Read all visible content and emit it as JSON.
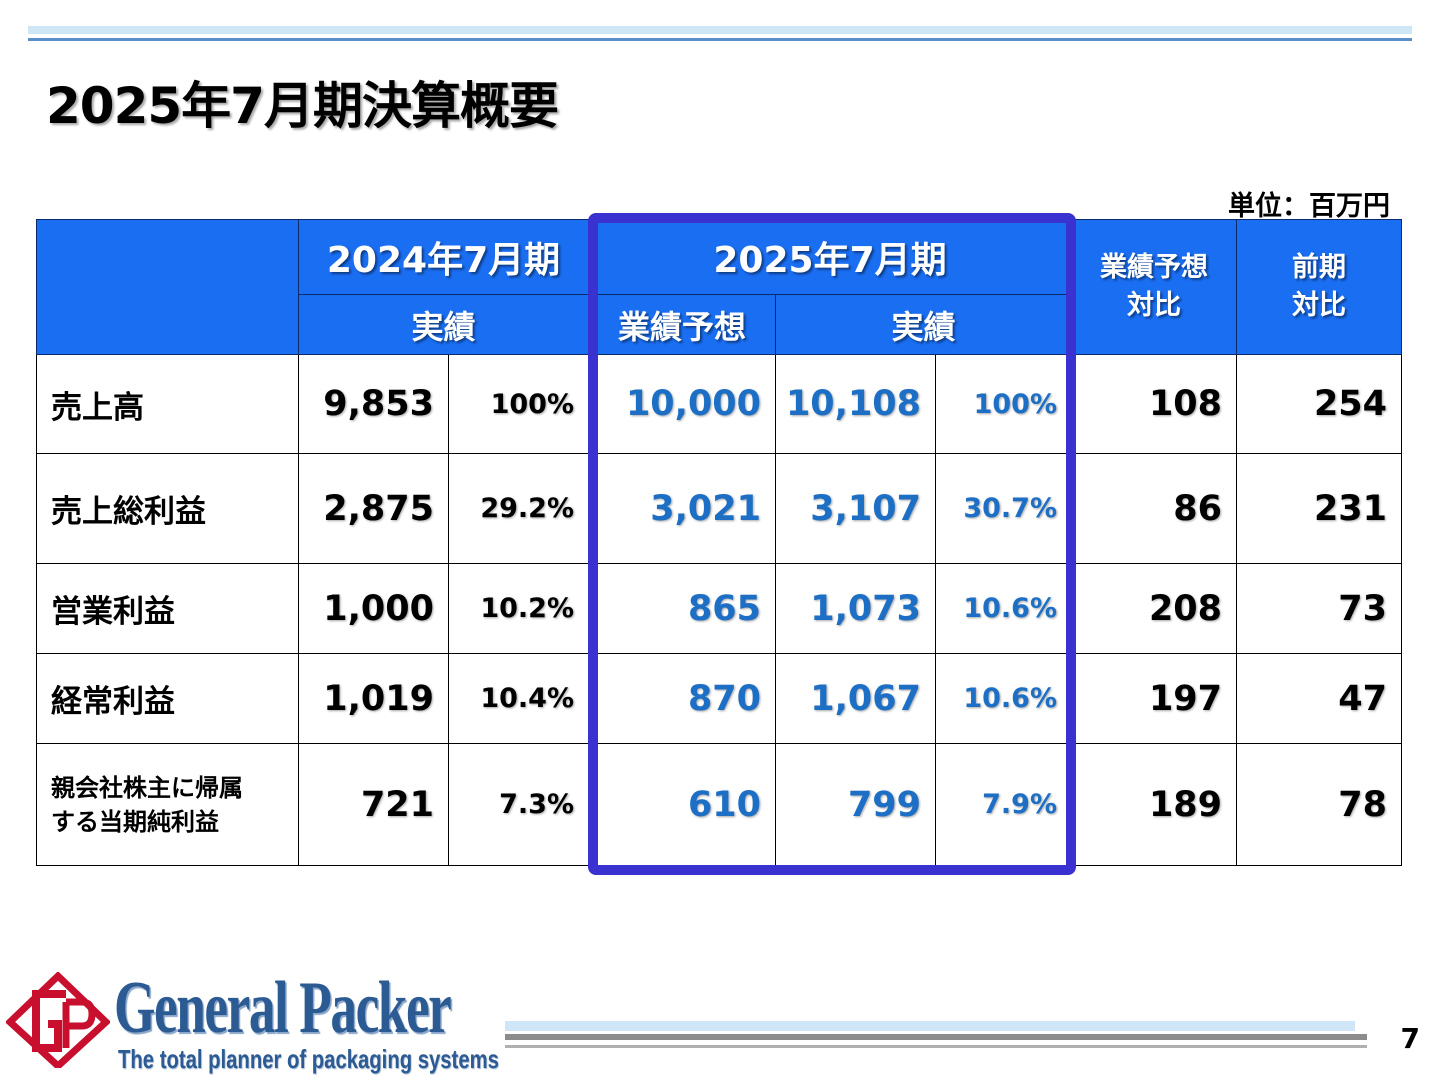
{
  "title": "2025年7月期決算概要",
  "unit": "単位：百万円",
  "header": {
    "fy2024": "2024年7月期",
    "fy2024_actual": "実績",
    "fy2025": "2025年7月期",
    "fy2025_forecast": "業績予想",
    "fy2025_actual": "実績",
    "vs_forecast_line1": "業績予想",
    "vs_forecast_line2": "対比",
    "vs_prior_line1": "前期",
    "vs_prior_line2": "対比"
  },
  "rows": [
    {
      "label": "売上高",
      "fy2024_value": "9,853",
      "fy2024_pct": "100%",
      "forecast": "10,000",
      "fy2025_value": "10,108",
      "fy2025_pct": "100%",
      "vs_forecast": "108",
      "vs_prior": "254"
    },
    {
      "label": "売上総利益",
      "fy2024_value": "2,875",
      "fy2024_pct": "29.2%",
      "forecast": "3,021",
      "fy2025_value": "3,107",
      "fy2025_pct": "30.7%",
      "vs_forecast": "86",
      "vs_prior": "231"
    },
    {
      "label": "営業利益",
      "fy2024_value": "1,000",
      "fy2024_pct": "10.2%",
      "forecast": "865",
      "fy2025_value": "1,073",
      "fy2025_pct": "10.6%",
      "vs_forecast": "208",
      "vs_prior": "73"
    },
    {
      "label": "経常利益",
      "fy2024_value": "1,019",
      "fy2024_pct": "10.4%",
      "forecast": "870",
      "fy2025_value": "1,067",
      "fy2025_pct": "10.6%",
      "vs_forecast": "197",
      "vs_prior": "47"
    },
    {
      "label_line1": "親会社株主に帰属",
      "label_line2": "する当期純利益",
      "fy2024_value": "721",
      "fy2024_pct": "7.3%",
      "forecast": "610",
      "fy2025_value": "799",
      "fy2025_pct": "7.9%",
      "vs_forecast": "189",
      "vs_prior": "78"
    }
  ],
  "footer": {
    "company_name": "General Packer",
    "tagline": "The total planner of packaging systems",
    "logo_mark": "GP",
    "page_number": "7"
  },
  "colors": {
    "header_bg": "#1a6ef2",
    "highlight_frame": "#3a32d0",
    "value_blue": "#1c6fc5"
  }
}
